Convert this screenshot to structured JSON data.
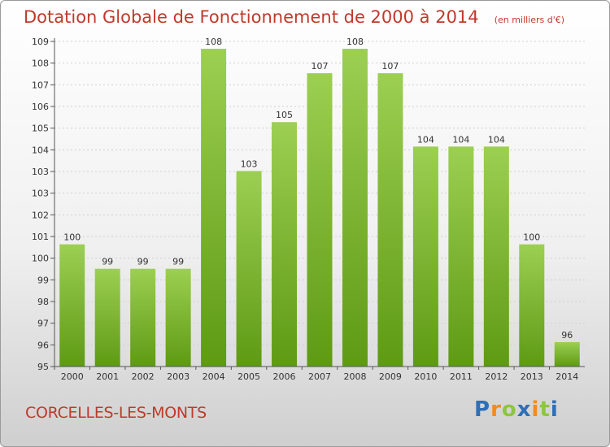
{
  "title": "Dotation Globale de Fonctionnement de 2000 à 2014",
  "subtitle": "(en milliers d'€)",
  "commune": "CORCELLES-LES-MONTS",
  "logo": {
    "letters": [
      "P",
      "r",
      "o",
      "x",
      "i",
      "t",
      "i"
    ],
    "colors": [
      "#2e6fb7",
      "#f08c1e",
      "#8dc63f",
      "#2e6fb7",
      "#f08c1e",
      "#8dc63f",
      "#2e6fb7"
    ]
  },
  "colors": {
    "bar_top": "#9ccf52",
    "bar_bottom": "#5e9a14",
    "text": "#c0392b",
    "axis": "#555555"
  },
  "chart_data": {
    "type": "bar",
    "categories": [
      "2000",
      "2001",
      "2002",
      "2003",
      "2004",
      "2005",
      "2006",
      "2007",
      "2008",
      "2009",
      "2010",
      "2011",
      "2012",
      "2013",
      "2014"
    ],
    "values": [
      100,
      99,
      99,
      99,
      108,
      103,
      105,
      107,
      108,
      107,
      104,
      104,
      104,
      100,
      96
    ],
    "data_labels": [
      "100",
      "99",
      "99",
      "99",
      "108",
      "103",
      "105",
      "107",
      "108",
      "107",
      "104",
      "104",
      "104",
      "100",
      "96"
    ],
    "y_tick_labels": [
      "95",
      "96",
      "97",
      "98",
      "99",
      "100",
      "101",
      "102",
      "103",
      "103",
      "104",
      "105",
      "106",
      "107",
      "108",
      "109"
    ],
    "ylim": [
      95,
      108.3
    ],
    "grid": true,
    "xlabel": "",
    "ylabel": ""
  }
}
